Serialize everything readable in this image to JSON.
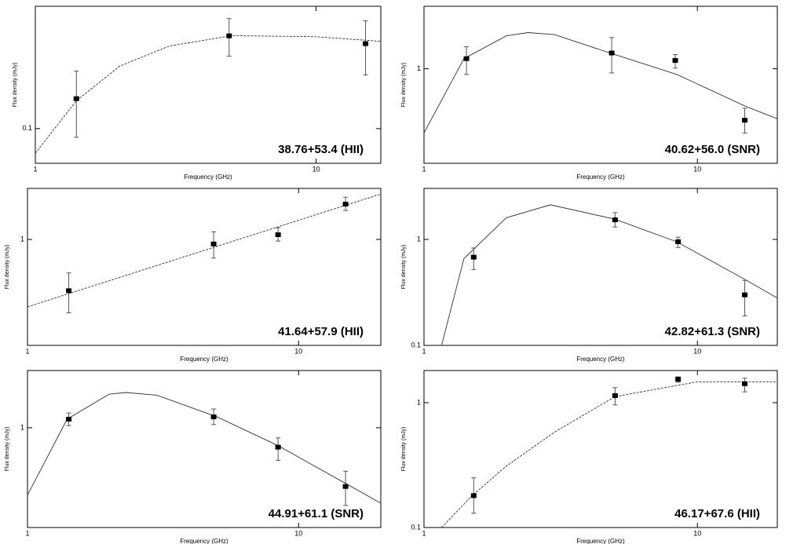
{
  "chart_data": [
    {
      "type": "scatter",
      "title": "38.76+53.4 (HII)",
      "xlabel": "Frequency (GHz)",
      "ylabel": "Flux density (mJy)",
      "log_x": true,
      "log_y": true,
      "xlim": [
        1,
        17
      ],
      "xticks": [
        1,
        10
      ],
      "ylim": [
        0.063,
        0.51
      ],
      "yticks": [
        0.1
      ],
      "color": "#000000",
      "x": [
        1.4,
        4.9,
        15.0
      ],
      "values": [
        0.149,
        0.344,
        0.31
      ],
      "lower": [
        0.089,
        0.262,
        0.204
      ],
      "upper": [
        0.215,
        0.433,
        0.42
      ],
      "fit": {
        "dash": "dashed",
        "x": [
          1,
          1.4,
          2,
          3,
          5,
          10,
          17
        ],
        "values": [
          0.072,
          0.145,
          0.23,
          0.3,
          0.345,
          0.34,
          0.32
        ]
      }
    },
    {
      "type": "scatter",
      "title": "40.62+56.0 (SNR)",
      "xlabel": "Frequency (GHz)",
      "ylabel": "Flux density (mJy)",
      "log_x": true,
      "log_y": true,
      "xlim": [
        1,
        19.6
      ],
      "xticks": [
        1,
        10
      ],
      "ylim": [
        0.25,
        2.5
      ],
      "yticks": [
        1
      ],
      "color": "#000000",
      "x": [
        1.43,
        4.86,
        8.3,
        14.9
      ],
      "values": [
        1.16,
        1.26,
        1.13,
        0.47
      ],
      "lower": [
        0.92,
        0.94,
        1.01,
        0.39
      ],
      "upper": [
        1.38,
        1.58,
        1.23,
        0.56
      ],
      "fit": {
        "dash": "solid",
        "x": [
          1,
          1.4,
          2,
          2.4,
          3,
          5,
          8.4,
          14.9,
          19.6
        ],
        "values": [
          0.39,
          1.16,
          1.62,
          1.7,
          1.65,
          1.23,
          0.92,
          0.58,
          0.48
        ]
      }
    },
    {
      "type": "scatter",
      "title": "41.64+57.9 (HII)",
      "xlabel": "Frequency (GHz)",
      "ylabel": "Flux density (mJy)",
      "log_x": true,
      "log_y": true,
      "xlim": [
        1,
        20.1
      ],
      "xticks": [
        1,
        10
      ],
      "ylim": [
        0.143,
        2.55
      ],
      "yticks": [
        1
      ],
      "color": "#000000",
      "x": [
        1.42,
        4.86,
        8.4,
        14.9
      ],
      "values": [
        0.39,
        0.92,
        1.09,
        1.91
      ],
      "lower": [
        0.26,
        0.71,
        0.97,
        1.7
      ],
      "upper": [
        0.54,
        1.15,
        1.24,
        2.17
      ],
      "fit": {
        "dash": "dashed",
        "x": [
          1,
          4.5,
          20.1
        ],
        "values": [
          0.29,
          0.82,
          2.3
        ]
      }
    },
    {
      "type": "scatter",
      "title": "42.82+61.3 (SNR)",
      "xlabel": "Frequency (GHz)",
      "ylabel": "Flux density (mJy)",
      "log_x": true,
      "log_y": true,
      "xlim": [
        1,
        19.6
      ],
      "xticks": [
        1,
        10
      ],
      "ylim": [
        0.1,
        3.03
      ],
      "yticks": [
        0.1,
        1
      ],
      "color": "#000000",
      "x": [
        1.52,
        5.0,
        8.5,
        14.9
      ],
      "values": [
        0.68,
        1.53,
        0.95,
        0.3
      ],
      "lower": [
        0.52,
        1.31,
        0.84,
        0.19
      ],
      "upper": [
        0.83,
        1.79,
        1.05,
        0.41
      ],
      "fit": {
        "dash": "solid",
        "x": [
          1.16,
          1.4,
          2,
          2.9,
          5,
          8.4,
          14.9,
          19.6
        ],
        "values": [
          0.1,
          0.66,
          1.6,
          2.12,
          1.55,
          0.95,
          0.42,
          0.28
        ]
      }
    },
    {
      "type": "scatter",
      "title": "44.91+61.1 (SNR)",
      "xlabel": "Frequency (GHz)",
      "ylabel": "Flux density (mJy)",
      "log_x": true,
      "log_y": true,
      "xlim": [
        1,
        20.1
      ],
      "xticks": [
        1,
        10
      ],
      "ylim": [
        0.16,
        2.86
      ],
      "yticks": [
        1
      ],
      "color": "#000000",
      "x": [
        1.42,
        4.86,
        8.4,
        14.9
      ],
      "values": [
        1.17,
        1.22,
        0.7,
        0.34
      ],
      "lower": [
        1.04,
        1.06,
        0.55,
        0.24
      ],
      "upper": [
        1.31,
        1.41,
        0.83,
        0.45
      ],
      "fit": {
        "dash": "solid",
        "x": [
          1,
          1.4,
          2,
          2.3,
          3,
          5,
          8.4,
          14.9,
          20.1
        ],
        "values": [
          0.29,
          1.17,
          1.85,
          1.91,
          1.82,
          1.22,
          0.72,
          0.36,
          0.25
        ]
      }
    },
    {
      "type": "scatter",
      "title": "46.17+67.6 (HII)",
      "xlabel": "Frequency (GHz)",
      "ylabel": "Flux density (mJy)",
      "log_x": true,
      "log_y": true,
      "xlim": [
        1,
        19.6
      ],
      "xticks": [
        1,
        10
      ],
      "ylim": [
        0.1,
        1.81
      ],
      "yticks": [
        0.1,
        1
      ],
      "color": "#000000",
      "x": [
        1.52,
        5.0,
        8.5,
        14.9
      ],
      "values": [
        0.18,
        1.14,
        1.54,
        1.42
      ],
      "lower": [
        0.13,
        0.96,
        1.46,
        1.22
      ],
      "upper": [
        0.25,
        1.32,
        1.61,
        1.57
      ],
      "fit": {
        "dash": "dashed",
        "x": [
          1.16,
          1.5,
          2,
          3,
          5,
          10,
          19.6
        ],
        "values": [
          0.1,
          0.18,
          0.31,
          0.58,
          1.12,
          1.47,
          1.47
        ]
      }
    }
  ]
}
